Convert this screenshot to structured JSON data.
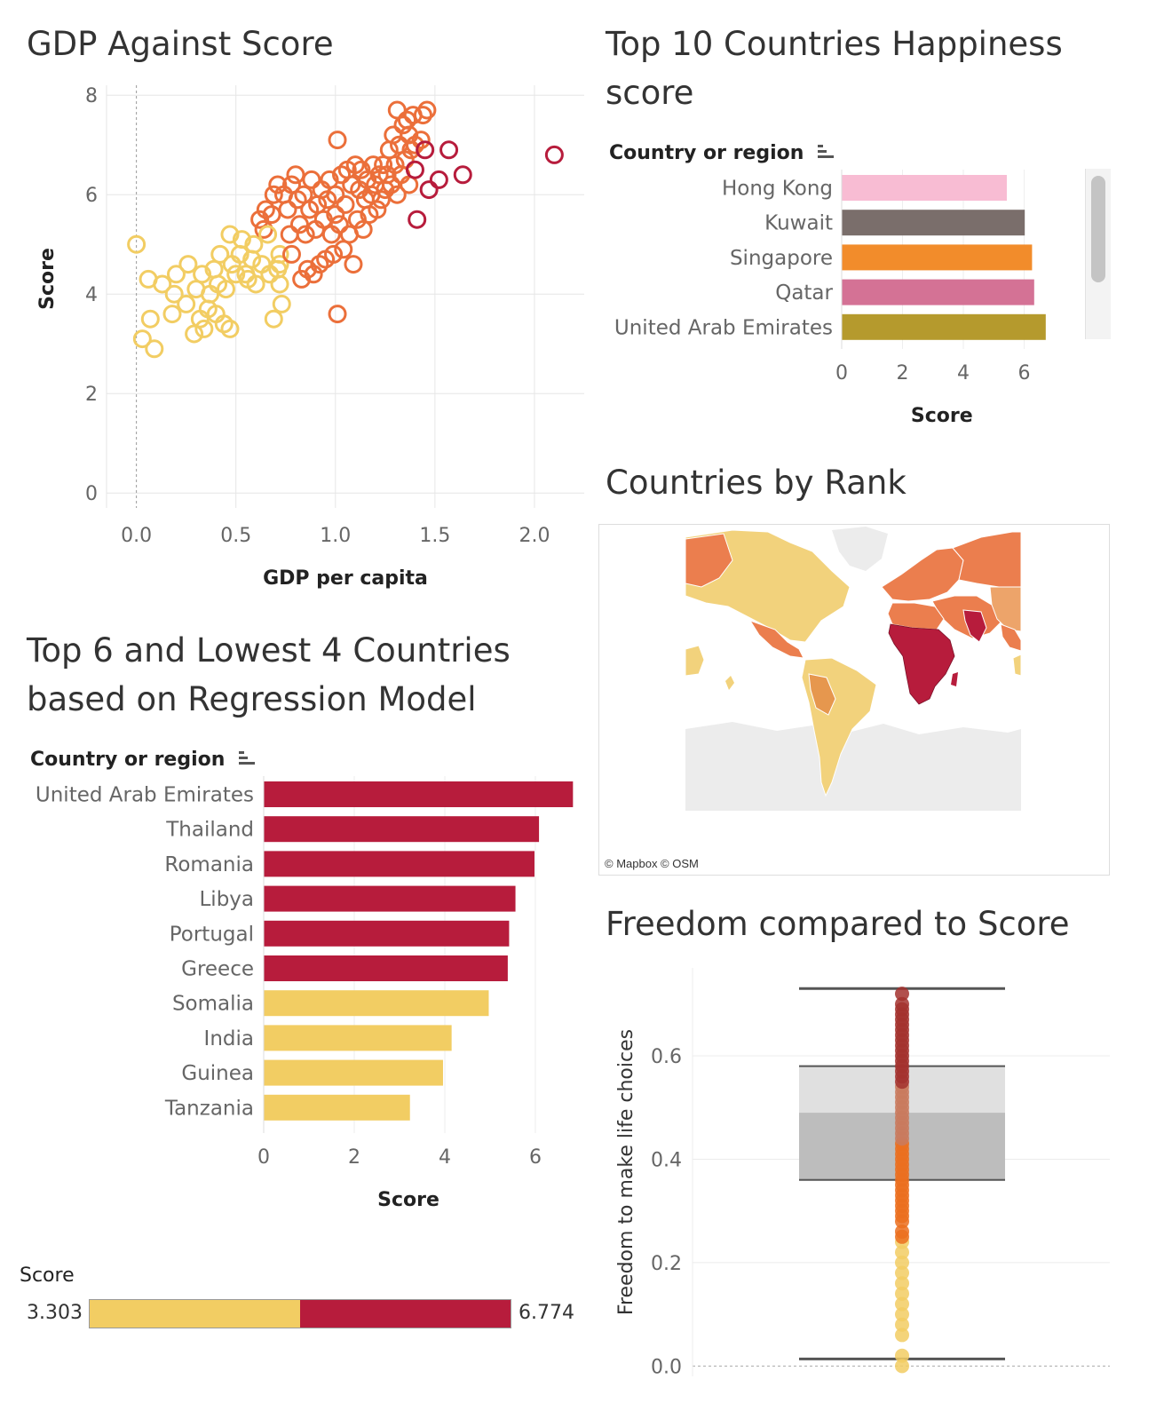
{
  "titles": {
    "scatter": "GDP Against Score",
    "top10": [
      "Top 10 Countries Happiness",
      "score"
    ],
    "regression": [
      "Top 6 and Lowest 4 Countries",
      "based on Regression Model"
    ],
    "map": "Countries by Rank",
    "freedom": "Freedom compared to Score"
  },
  "map_attribution": "© Mapbox © OSM",
  "score_legend": {
    "title": "Score",
    "min_label": "3.303",
    "max_label": "6.774",
    "colors": [
      "#F2CD63",
      "#B71C3C"
    ]
  },
  "colors": {
    "low": "#F2CD63",
    "mid": "#EB6F3A",
    "high": "#B71C3C",
    "grid": "#E8E8E8"
  },
  "chart_data": [
    {
      "type": "scatter",
      "title": "GDP Against Score",
      "xlabel": "GDP per capita",
      "ylabel": "Score",
      "xlim": [
        -0.15,
        2.25
      ],
      "ylim": [
        -0.3,
        8.2
      ],
      "x_ticks": [
        "0.0",
        "0.5",
        "1.0",
        "1.5",
        "2.0"
      ],
      "y_ticks": [
        "0",
        "2",
        "4",
        "6",
        "8"
      ],
      "points": [
        [
          0.0,
          5.0
        ],
        [
          0.03,
          3.1
        ],
        [
          0.09,
          2.9
        ],
        [
          0.07,
          3.5
        ],
        [
          0.06,
          4.3
        ],
        [
          0.13,
          4.2
        ],
        [
          0.18,
          3.6
        ],
        [
          0.19,
          4.0
        ],
        [
          0.2,
          4.4
        ],
        [
          0.25,
          3.8
        ],
        [
          0.26,
          4.6
        ],
        [
          0.29,
          3.2
        ],
        [
          0.3,
          4.1
        ],
        [
          0.32,
          3.5
        ],
        [
          0.33,
          4.4
        ],
        [
          0.34,
          3.3
        ],
        [
          0.36,
          3.7
        ],
        [
          0.37,
          4.0
        ],
        [
          0.39,
          4.5
        ],
        [
          0.4,
          3.6
        ],
        [
          0.41,
          4.2
        ],
        [
          0.42,
          4.8
        ],
        [
          0.44,
          3.4
        ],
        [
          0.45,
          4.1
        ],
        [
          0.47,
          5.2
        ],
        [
          0.47,
          3.3
        ],
        [
          0.48,
          4.6
        ],
        [
          0.5,
          4.4
        ],
        [
          0.52,
          4.8
        ],
        [
          0.53,
          5.1
        ],
        [
          0.55,
          4.4
        ],
        [
          0.56,
          4.3
        ],
        [
          0.58,
          4.7
        ],
        [
          0.59,
          5.0
        ],
        [
          0.6,
          4.2
        ],
        [
          0.62,
          5.5
        ],
        [
          0.63,
          4.6
        ],
        [
          0.64,
          5.3
        ],
        [
          0.65,
          5.7
        ],
        [
          0.66,
          5.2
        ],
        [
          0.67,
          4.4
        ],
        [
          0.68,
          5.6
        ],
        [
          0.69,
          6.0
        ],
        [
          0.69,
          3.5
        ],
        [
          0.71,
          6.2
        ],
        [
          0.71,
          4.5
        ],
        [
          0.72,
          4.2
        ],
        [
          0.72,
          4.8
        ],
        [
          0.72,
          4.6
        ],
        [
          0.73,
          3.8
        ],
        [
          0.74,
          6.0
        ],
        [
          0.76,
          5.7
        ],
        [
          0.77,
          5.2
        ],
        [
          0.78,
          4.8
        ],
        [
          0.78,
          6.2
        ],
        [
          0.8,
          6.4
        ],
        [
          0.81,
          5.9
        ],
        [
          0.82,
          5.4
        ],
        [
          0.83,
          4.3
        ],
        [
          0.84,
          6.0
        ],
        [
          0.85,
          5.2
        ],
        [
          0.86,
          4.5
        ],
        [
          0.87,
          5.7
        ],
        [
          0.88,
          6.3
        ],
        [
          0.89,
          4.4
        ],
        [
          0.9,
          5.3
        ],
        [
          0.91,
          5.8
        ],
        [
          0.92,
          4.6
        ],
        [
          0.93,
          6.1
        ],
        [
          0.94,
          5.5
        ],
        [
          0.95,
          4.7
        ],
        [
          0.96,
          5.9
        ],
        [
          0.97,
          6.3
        ],
        [
          0.98,
          5.2
        ],
        [
          0.99,
          4.8
        ],
        [
          1.0,
          5.6
        ],
        [
          1.0,
          6.0
        ],
        [
          1.01,
          7.1
        ],
        [
          1.01,
          3.6
        ],
        [
          1.02,
          5.4
        ],
        [
          1.03,
          6.4
        ],
        [
          1.04,
          4.9
        ],
        [
          1.05,
          5.8
        ],
        [
          1.06,
          6.5
        ],
        [
          1.07,
          5.2
        ],
        [
          1.08,
          6.2
        ],
        [
          1.09,
          4.6
        ],
        [
          1.1,
          6.6
        ],
        [
          1.11,
          5.5
        ],
        [
          1.12,
          6.1
        ],
        [
          1.13,
          6.5
        ],
        [
          1.14,
          5.3
        ],
        [
          1.15,
          5.9
        ],
        [
          1.16,
          6.3
        ],
        [
          1.17,
          5.6
        ],
        [
          1.18,
          6.0
        ],
        [
          1.19,
          6.6
        ],
        [
          1.2,
          6.2
        ],
        [
          1.21,
          5.7
        ],
        [
          1.22,
          6.4
        ],
        [
          1.23,
          5.9
        ],
        [
          1.24,
          6.6
        ],
        [
          1.25,
          6.1
        ],
        [
          1.26,
          6.4
        ],
        [
          1.27,
          6.9
        ],
        [
          1.28,
          6.2
        ],
        [
          1.29,
          7.2
        ],
        [
          1.3,
          6.6
        ],
        [
          1.31,
          7.7
        ],
        [
          1.31,
          6.0
        ],
        [
          1.32,
          7.0
        ],
        [
          1.33,
          6.4
        ],
        [
          1.34,
          7.4
        ],
        [
          1.35,
          6.7
        ],
        [
          1.36,
          7.5
        ],
        [
          1.37,
          7.2
        ],
        [
          1.37,
          6.2
        ],
        [
          1.38,
          6.9
        ],
        [
          1.39,
          7.6
        ],
        [
          1.4,
          6.5
        ],
        [
          1.4,
          7.0
        ],
        [
          1.41,
          5.5
        ],
        [
          1.43,
          7.1
        ],
        [
          1.44,
          7.6
        ],
        [
          1.45,
          6.9
        ],
        [
          1.46,
          7.7
        ],
        [
          1.47,
          6.1
        ],
        [
          1.52,
          6.3
        ],
        [
          1.57,
          6.9
        ],
        [
          1.64,
          6.4
        ],
        [
          2.1,
          6.8
        ]
      ],
      "color_thresholds": {
        "low_below": 5.3,
        "high_from_x": 1.4
      }
    },
    {
      "type": "bar",
      "title": "Top 10 Countries Happiness score",
      "category_header": "Country or region",
      "categories": [
        "Hong Kong",
        "Kuwait",
        "Singapore",
        "Qatar",
        "United Arab Emirates"
      ],
      "values": [
        5.43,
        6.02,
        6.26,
        6.33,
        6.71
      ],
      "bar_colors": [
        "#F8BCD3",
        "#7A6E6B",
        "#F28C2B",
        "#D47295",
        "#B59A2D"
      ],
      "xlabel": "Score",
      "x_ticks": [
        "0",
        "2",
        "4",
        "6"
      ],
      "xlim": [
        0,
        8.0
      ]
    },
    {
      "type": "bar",
      "title": "Top 6 and Lowest 4 Countries based on Regression Model",
      "category_header": "Country or region",
      "categories": [
        "United Arab Emirates",
        "Thailand",
        "Romania",
        "Libya",
        "Portugal",
        "Greece",
        "Somalia",
        "India",
        "Guinea",
        "Tanzania"
      ],
      "values": [
        6.83,
        6.08,
        5.98,
        5.56,
        5.42,
        5.39,
        4.97,
        4.15,
        3.96,
        3.23
      ],
      "bar_colors": [
        "#B71C3C",
        "#B71C3C",
        "#B71C3C",
        "#B71C3C",
        "#B71C3C",
        "#B71C3C",
        "#F2CD63",
        "#F2CD63",
        "#F2CD63",
        "#F2CD63"
      ],
      "xlabel": "Score",
      "x_ticks": [
        "0",
        "2",
        "4",
        "6"
      ],
      "xlim": [
        0,
        7.0
      ]
    },
    {
      "type": "boxplot",
      "title": "Freedom compared to Score",
      "ylabel": "Freedom to make life choices",
      "y_ticks": [
        "0.0",
        "0.2",
        "0.4",
        "0.6"
      ],
      "ylim": [
        -0.02,
        0.77
      ],
      "whisker_low": 0.0,
      "q1": 0.36,
      "median": 0.49,
      "q3": 0.58,
      "whisker_high": 0.73,
      "points": [
        0.0,
        0.02,
        0.06,
        0.08,
        0.1,
        0.12,
        0.14,
        0.16,
        0.18,
        0.2,
        0.22,
        0.24,
        0.25,
        0.26,
        0.28,
        0.29,
        0.3,
        0.31,
        0.32,
        0.33,
        0.34,
        0.35,
        0.36,
        0.37,
        0.38,
        0.39,
        0.4,
        0.41,
        0.42,
        0.43,
        0.44,
        0.45,
        0.46,
        0.47,
        0.48,
        0.49,
        0.5,
        0.51,
        0.52,
        0.53,
        0.54,
        0.55,
        0.56,
        0.57,
        0.58,
        0.59,
        0.6,
        0.61,
        0.62,
        0.63,
        0.64,
        0.65,
        0.66,
        0.67,
        0.68,
        0.69,
        0.7,
        0.72
      ]
    }
  ]
}
